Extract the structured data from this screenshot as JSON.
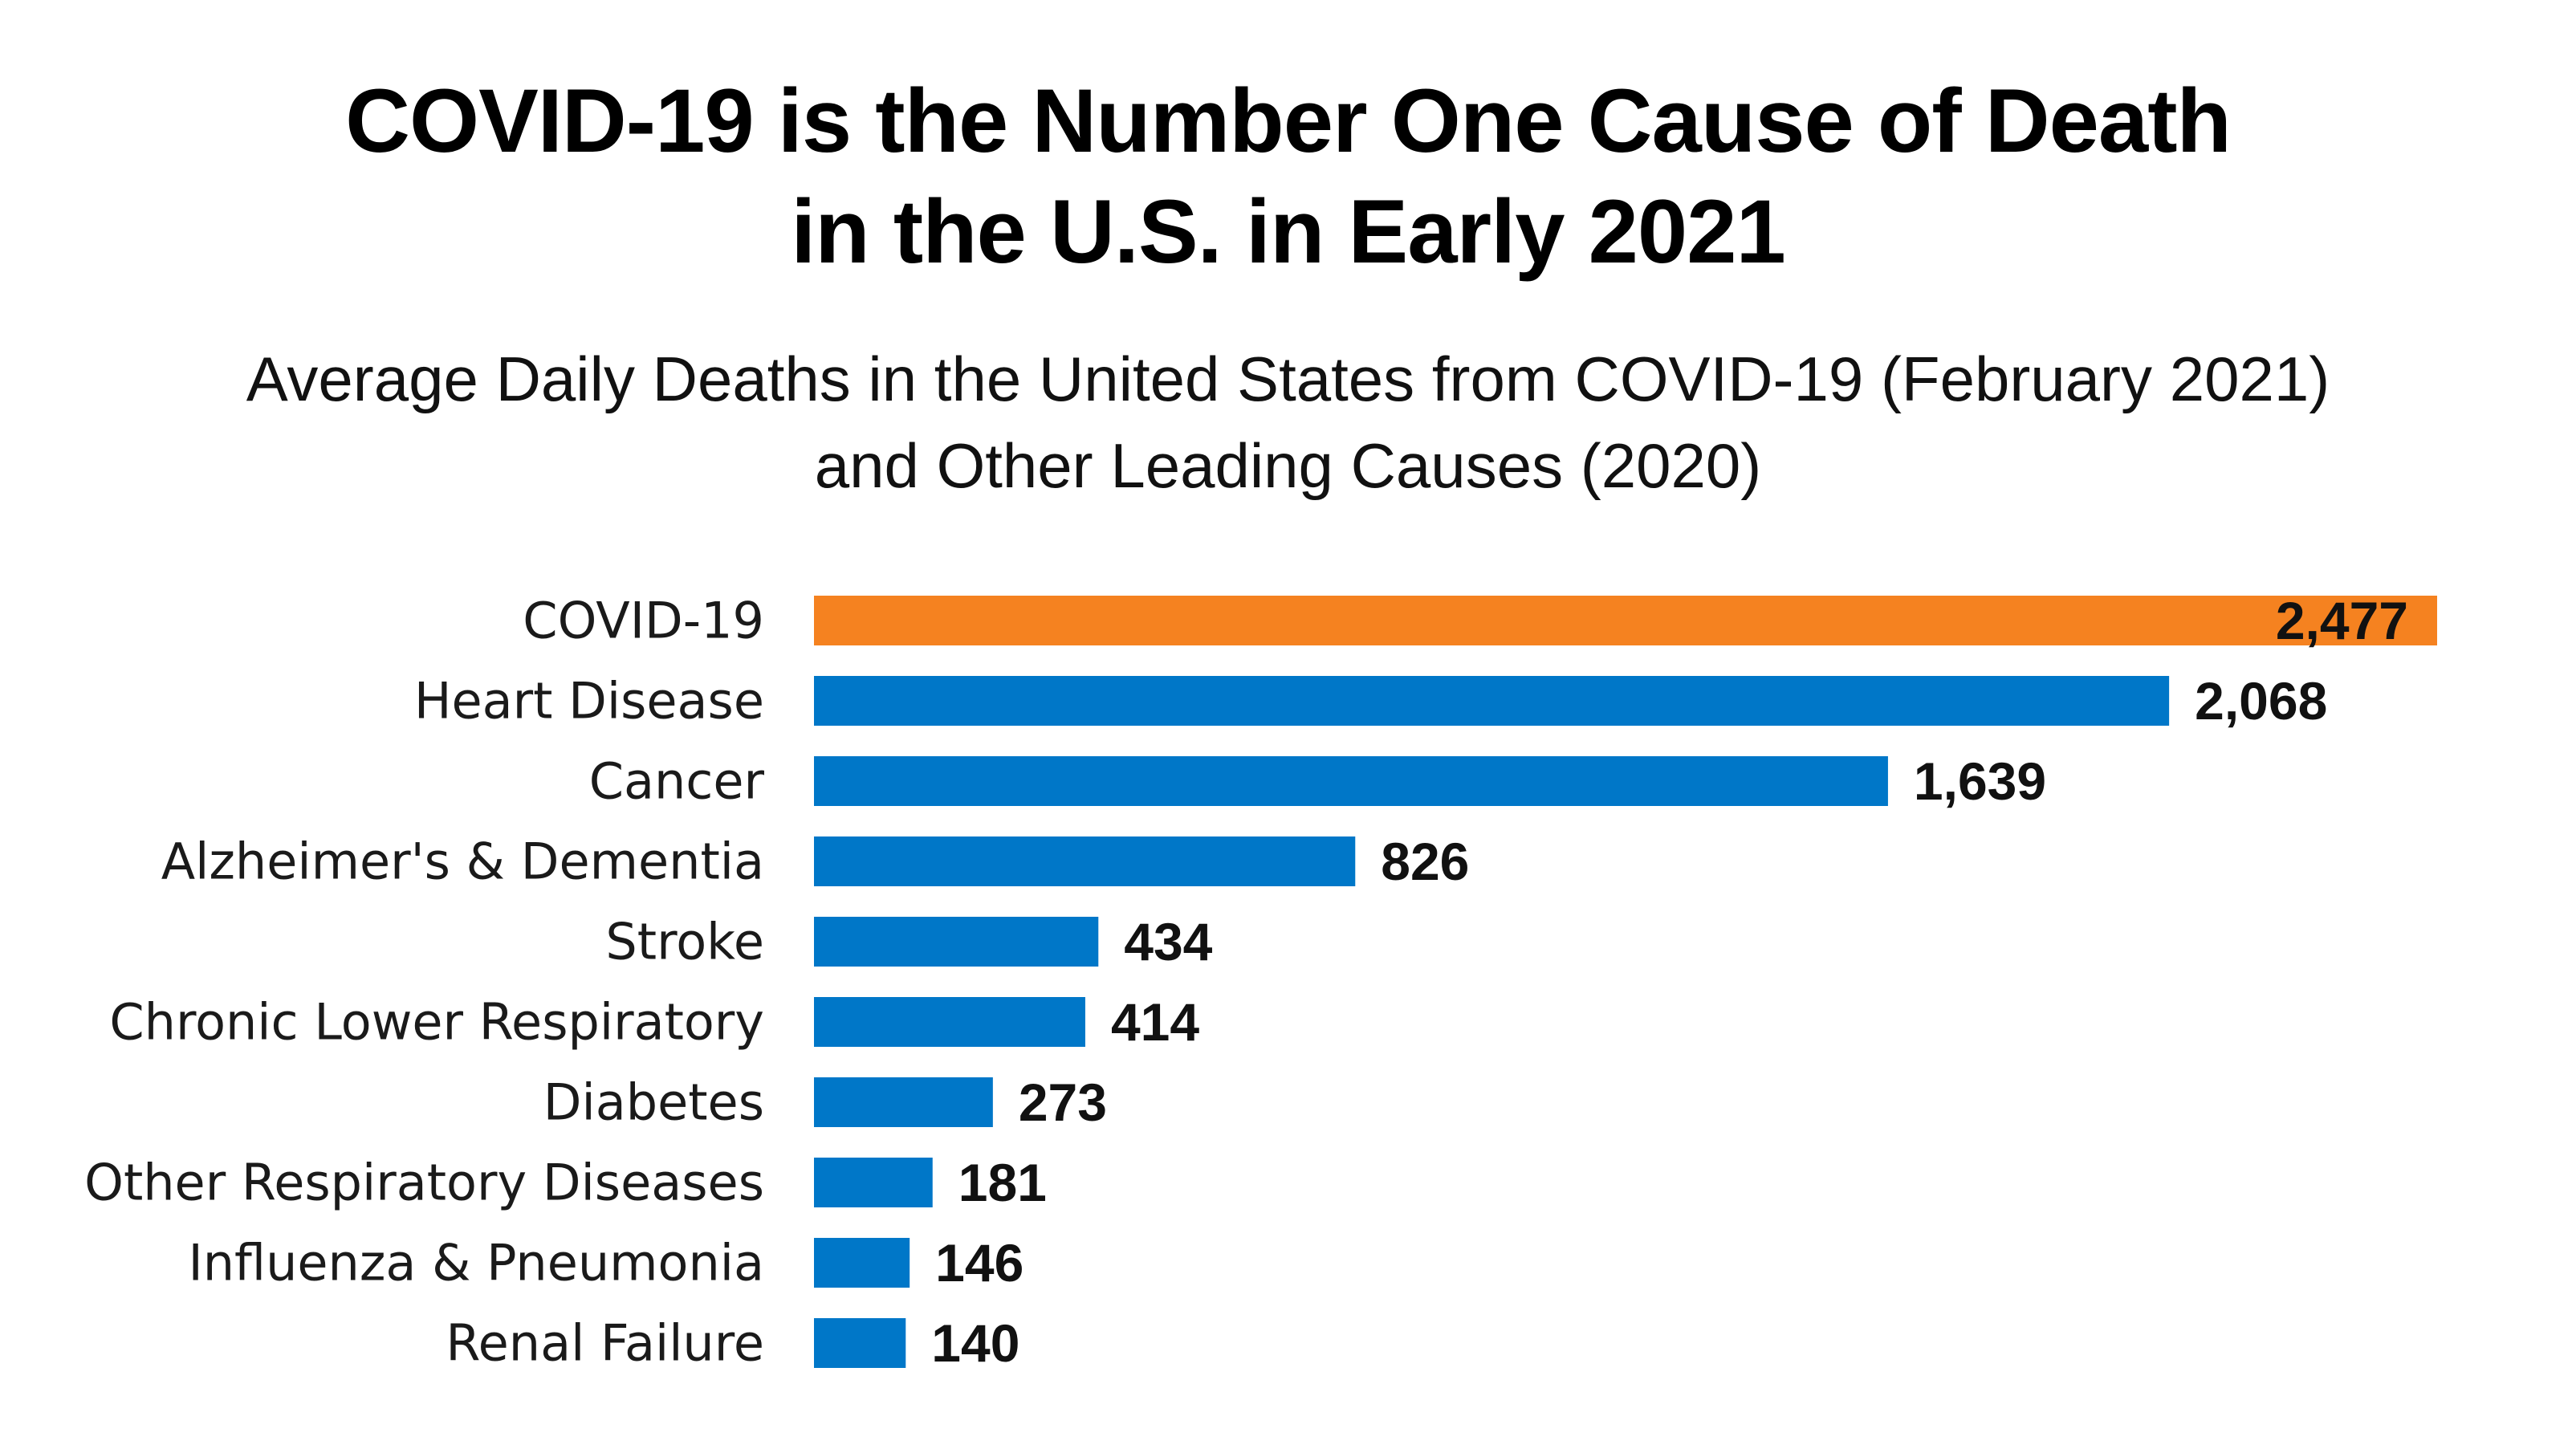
{
  "chart_data": {
    "type": "bar",
    "orientation": "horizontal",
    "title": "COVID-19 is the Number One Cause of Death in the U.S. in Early 2021",
    "title_lines": [
      "COVID-19 is the Number One Cause of Death",
      "in the U.S. in Early 2021"
    ],
    "subtitle": "Average Daily Deaths in the United States from COVID-19 (February 2021) and Other Leading Causes (2020)",
    "subtitle_lines": [
      "Average Daily Deaths in the United States from COVID-19 (February 2021)",
      "and Other Leading Causes (2020)"
    ],
    "categories": [
      "COVID-19",
      "Heart Disease",
      "Cancer",
      "Alzheimer's & Dementia",
      "Stroke",
      "Chronic Lower Respiratory",
      "Diabetes",
      "Other Respiratory Diseases",
      "Influenza & Pneumonia",
      "Renal Failure"
    ],
    "values": [
      2477,
      2068,
      1639,
      826,
      434,
      414,
      273,
      181,
      146,
      140
    ],
    "value_labels": [
      "2,477",
      "2,068",
      "1,639",
      "826",
      "434",
      "414",
      "273",
      "181",
      "146",
      "140"
    ],
    "highlight_index": 0,
    "xlabel": "",
    "ylabel": "",
    "xlim": [
      0,
      2477
    ],
    "grid": false,
    "legend": "none",
    "colors": {
      "highlight": "#F58220",
      "bar": "#0077C8",
      "highlight_label": "#FFFFFF",
      "label": "#111111"
    }
  }
}
